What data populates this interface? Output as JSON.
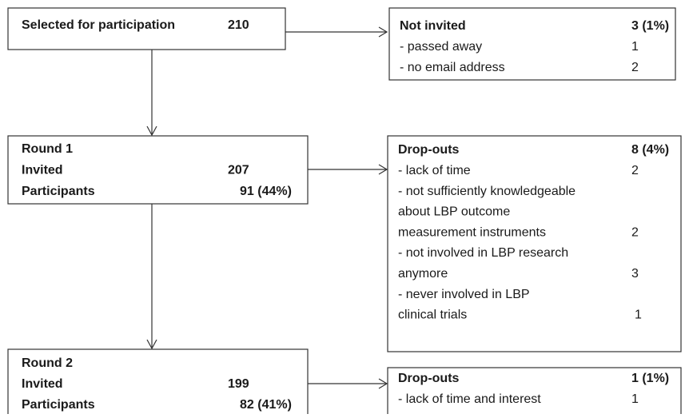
{
  "boxes": [
    {
      "rows": [
        {
          "label": "Selected for participation",
          "count": "210",
          "bold": true
        }
      ]
    },
    {
      "rows": [
        {
          "label": "Not invited",
          "count": "3 (1%)",
          "bold": true
        },
        {
          "label": "- passed away",
          "count": "1"
        },
        {
          "label": "- no email address",
          "count": "2"
        }
      ]
    },
    {
      "rows": [
        {
          "label": "Round 1",
          "bold": true
        },
        {
          "label": "Invited",
          "count": "207",
          "bold": true
        },
        {
          "label": "Participants",
          "count": "91 (44%)",
          "bold": true
        }
      ]
    },
    {
      "rows": [
        {
          "label": "Drop-outs",
          "count": "8 (4%)",
          "bold": true
        },
        {
          "label": "- lack of time",
          "count": "2"
        },
        {
          "label": "- not sufficiently knowledgeable"
        },
        {
          "label": "about LBP outcome"
        },
        {
          "label": "measurement instruments",
          "count": "2"
        },
        {
          "label": "- not involved in LBP research"
        },
        {
          "label": "anymore",
          "count": "3"
        },
        {
          "label": "- never involved in LBP"
        },
        {
          "label": "clinical trials",
          "count": "1"
        }
      ]
    },
    {
      "rows": [
        {
          "label": "Round 2",
          "bold": true
        },
        {
          "label": "Invited",
          "count": "199",
          "bold": true
        },
        {
          "label": "Participants",
          "count": "82 (41%)",
          "bold": true
        }
      ]
    },
    {
      "rows": [
        {
          "label": "Drop-outs",
          "count": "1 (1%)",
          "bold": true
        },
        {
          "label": "- lack of time and interest",
          "count": "1"
        }
      ]
    }
  ]
}
